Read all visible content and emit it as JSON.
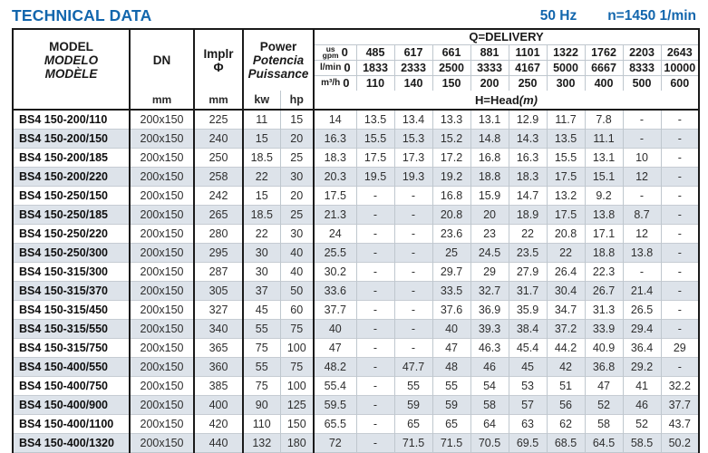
{
  "page": {
    "title": "TECHNICAL DATA",
    "frequency": "50 Hz",
    "speed": "n=1450 1/min",
    "colors": {
      "accent": "#1266ad",
      "stripe": "#dde3ea"
    }
  },
  "table": {
    "model_header": {
      "l1": "MODEL",
      "l2": "MODELO",
      "l3": "MODÈLE"
    },
    "dn_header": {
      "label": "DN",
      "unit": "mm"
    },
    "impeller_header": {
      "l1": "Implr",
      "symbol": "Φ",
      "unit": "mm"
    },
    "power_header": {
      "l1": "Power",
      "l2": "Potencia",
      "l3": "Puissance",
      "kw": "kw",
      "hp": "hp"
    },
    "delivery": {
      "title": "Q=DELIVERY",
      "head_label": "H=Head",
      "head_unit": "(m)",
      "unit_rows": [
        {
          "unit_top": "us",
          "unit": "gpm",
          "zero": "0",
          "values": [
            "485",
            "617",
            "661",
            "881",
            "1101",
            "1322",
            "1762",
            "2203",
            "2643"
          ]
        },
        {
          "unit": "l/min",
          "zero": "0",
          "values": [
            "1833",
            "2333",
            "2500",
            "3333",
            "4167",
            "5000",
            "6667",
            "8333",
            "10000"
          ]
        },
        {
          "unit": "m³/h",
          "zero": "0",
          "values": [
            "110",
            "140",
            "150",
            "200",
            "250",
            "300",
            "400",
            "500",
            "600"
          ]
        }
      ]
    },
    "rows": [
      {
        "model": "BS4 150-200/110",
        "dn": "200x150",
        "impeller": "225",
        "kw": "11",
        "hp": "15",
        "head": [
          "14",
          "13.5",
          "13.4",
          "13.3",
          "13.1",
          "12.9",
          "11.7",
          "7.8",
          "-",
          "-"
        ]
      },
      {
        "model": "BS4 150-200/150",
        "dn": "200x150",
        "impeller": "240",
        "kw": "15",
        "hp": "20",
        "head": [
          "16.3",
          "15.5",
          "15.3",
          "15.2",
          "14.8",
          "14.3",
          "13.5",
          "11.1",
          "-",
          "-"
        ]
      },
      {
        "model": "BS4 150-200/185",
        "dn": "200x150",
        "impeller": "250",
        "kw": "18.5",
        "hp": "25",
        "head": [
          "18.3",
          "17.5",
          "17.3",
          "17.2",
          "16.8",
          "16.3",
          "15.5",
          "13.1",
          "10",
          "-"
        ]
      },
      {
        "model": "BS4 150-200/220",
        "dn": "200x150",
        "impeller": "258",
        "kw": "22",
        "hp": "30",
        "head": [
          "20.3",
          "19.5",
          "19.3",
          "19.2",
          "18.8",
          "18.3",
          "17.5",
          "15.1",
          "12",
          "-"
        ]
      },
      {
        "model": "BS4 150-250/150",
        "dn": "200x150",
        "impeller": "242",
        "kw": "15",
        "hp": "20",
        "head": [
          "17.5",
          "-",
          "-",
          "16.8",
          "15.9",
          "14.7",
          "13.2",
          "9.2",
          "-",
          "-"
        ]
      },
      {
        "model": "BS4 150-250/185",
        "dn": "200x150",
        "impeller": "265",
        "kw": "18.5",
        "hp": "25",
        "head": [
          "21.3",
          "-",
          "-",
          "20.8",
          "20",
          "18.9",
          "17.5",
          "13.8",
          "8.7",
          "-"
        ]
      },
      {
        "model": "BS4 150-250/220",
        "dn": "200x150",
        "impeller": "280",
        "kw": "22",
        "hp": "30",
        "head": [
          "24",
          "-",
          "-",
          "23.6",
          "23",
          "22",
          "20.8",
          "17.1",
          "12",
          "-"
        ]
      },
      {
        "model": "BS4 150-250/300",
        "dn": "200x150",
        "impeller": "295",
        "kw": "30",
        "hp": "40",
        "head": [
          "25.5",
          "-",
          "-",
          "25",
          "24.5",
          "23.5",
          "22",
          "18.8",
          "13.8",
          "-"
        ]
      },
      {
        "model": "BS4 150-315/300",
        "dn": "200x150",
        "impeller": "287",
        "kw": "30",
        "hp": "40",
        "head": [
          "30.2",
          "-",
          "-",
          "29.7",
          "29",
          "27.9",
          "26.4",
          "22.3",
          "-",
          "-"
        ]
      },
      {
        "model": "BS4 150-315/370",
        "dn": "200x150",
        "impeller": "305",
        "kw": "37",
        "hp": "50",
        "head": [
          "33.6",
          "-",
          "-",
          "33.5",
          "32.7",
          "31.7",
          "30.4",
          "26.7",
          "21.4",
          "-"
        ]
      },
      {
        "model": "BS4 150-315/450",
        "dn": "200x150",
        "impeller": "327",
        "kw": "45",
        "hp": "60",
        "head": [
          "37.7",
          "-",
          "-",
          "37.6",
          "36.9",
          "35.9",
          "34.7",
          "31.3",
          "26.5",
          "-"
        ]
      },
      {
        "model": "BS4 150-315/550",
        "dn": "200x150",
        "impeller": "340",
        "kw": "55",
        "hp": "75",
        "head": [
          "40",
          "-",
          "-",
          "40",
          "39.3",
          "38.4",
          "37.2",
          "33.9",
          "29.4",
          "-"
        ]
      },
      {
        "model": "BS4 150-315/750",
        "dn": "200x150",
        "impeller": "365",
        "kw": "75",
        "hp": "100",
        "head": [
          "47",
          "-",
          "-",
          "47",
          "46.3",
          "45.4",
          "44.2",
          "40.9",
          "36.4",
          "29"
        ]
      },
      {
        "model": "BS4 150-400/550",
        "dn": "200x150",
        "impeller": "360",
        "kw": "55",
        "hp": "75",
        "head": [
          "48.2",
          "-",
          "47.7",
          "48",
          "46",
          "45",
          "42",
          "36.8",
          "29.2",
          "-"
        ]
      },
      {
        "model": "BS4 150-400/750",
        "dn": "200x150",
        "impeller": "385",
        "kw": "75",
        "hp": "100",
        "head": [
          "55.4",
          "-",
          "55",
          "55",
          "54",
          "53",
          "51",
          "47",
          "41",
          "32.2"
        ]
      },
      {
        "model": "BS4 150-400/900",
        "dn": "200x150",
        "impeller": "400",
        "kw": "90",
        "hp": "125",
        "head": [
          "59.5",
          "-",
          "59",
          "59",
          "58",
          "57",
          "56",
          "52",
          "46",
          "37.7"
        ]
      },
      {
        "model": "BS4 150-400/1100",
        "dn": "200x150",
        "impeller": "420",
        "kw": "110",
        "hp": "150",
        "head": [
          "65.5",
          "-",
          "65",
          "65",
          "64",
          "63",
          "62",
          "58",
          "52",
          "43.7"
        ]
      },
      {
        "model": "BS4 150-400/1320",
        "dn": "200x150",
        "impeller": "440",
        "kw": "132",
        "hp": "180",
        "head": [
          "72",
          "-",
          "71.5",
          "71.5",
          "70.5",
          "69.5",
          "68.5",
          "64.5",
          "58.5",
          "50.2"
        ]
      }
    ]
  }
}
